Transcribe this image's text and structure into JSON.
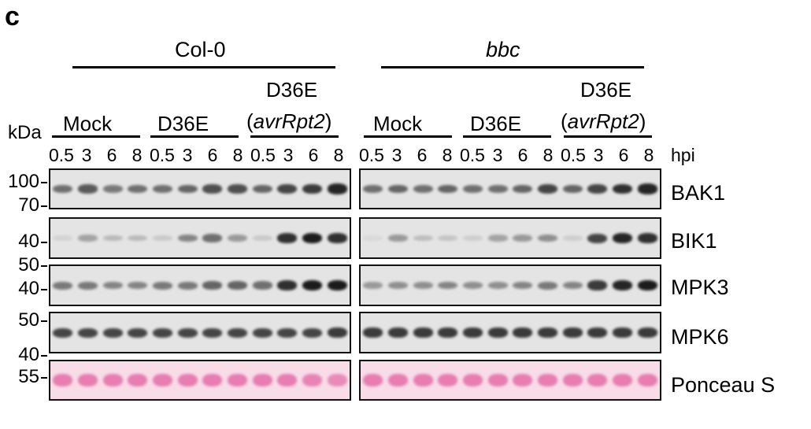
{
  "panel_letter": "c",
  "genotypes": [
    {
      "label": "Col-0",
      "italic": false
    },
    {
      "label": "bbc",
      "italic": true
    }
  ],
  "treatments": {
    "mock": "Mock",
    "d36e": "D36E",
    "d36e_avr_line1": "D36E",
    "d36e_avr_line2_open": "(",
    "d36e_avr_line2_gene": "avrRpt2",
    "d36e_avr_line2_close": ")"
  },
  "kda_label": "kDa",
  "hpi_label": "hpi",
  "timepoints": [
    "0.5",
    "3",
    "6",
    "8"
  ],
  "mw_markers": {
    "bak1": [
      "100",
      "70"
    ],
    "bik1": [
      "40"
    ],
    "mpk3": [
      "50",
      "40"
    ],
    "mpk6": [
      "50",
      "40"
    ],
    "ponceau": [
      "55"
    ]
  },
  "rows": [
    {
      "name": "BAK1",
      "stain": "gray",
      "intensity_col0": [
        0.55,
        0.65,
        0.5,
        0.55,
        0.55,
        0.6,
        0.7,
        0.7,
        0.6,
        0.75,
        0.8,
        0.9
      ],
      "intensity_bbc": [
        0.55,
        0.6,
        0.55,
        0.6,
        0.55,
        0.55,
        0.6,
        0.75,
        0.6,
        0.75,
        0.85,
        0.9
      ]
    },
    {
      "name": "BIK1",
      "stain": "gray",
      "intensity_col0": [
        0.08,
        0.3,
        0.2,
        0.2,
        0.12,
        0.45,
        0.55,
        0.35,
        0.12,
        0.85,
        0.95,
        0.85
      ],
      "intensity_bbc": [
        0.05,
        0.35,
        0.18,
        0.15,
        0.1,
        0.3,
        0.35,
        0.4,
        0.1,
        0.75,
        0.9,
        0.85
      ]
    },
    {
      "name": "MPK3",
      "stain": "gray",
      "intensity_col0": [
        0.5,
        0.5,
        0.45,
        0.45,
        0.5,
        0.5,
        0.6,
        0.6,
        0.55,
        0.85,
        0.95,
        0.95
      ],
      "intensity_bbc": [
        0.35,
        0.4,
        0.4,
        0.45,
        0.4,
        0.4,
        0.45,
        0.5,
        0.45,
        0.8,
        0.9,
        0.95
      ]
    },
    {
      "name": "MPK6",
      "stain": "gray",
      "intensity_col0": [
        0.75,
        0.75,
        0.75,
        0.75,
        0.75,
        0.75,
        0.75,
        0.75,
        0.75,
        0.75,
        0.75,
        0.8
      ],
      "intensity_bbc": [
        0.8,
        0.8,
        0.8,
        0.8,
        0.8,
        0.8,
        0.8,
        0.8,
        0.8,
        0.8,
        0.8,
        0.8
      ]
    },
    {
      "name": "Ponceau S",
      "stain": "pink",
      "intensity_col0": [
        0.7,
        0.7,
        0.7,
        0.7,
        0.7,
        0.7,
        0.7,
        0.7,
        0.7,
        0.7,
        0.65,
        0.6
      ],
      "intensity_bbc": [
        0.7,
        0.7,
        0.7,
        0.7,
        0.7,
        0.7,
        0.7,
        0.7,
        0.7,
        0.7,
        0.7,
        0.7
      ]
    }
  ],
  "colors": {
    "band_gray": "#111111",
    "band_pink": "#e0569a",
    "bg_gray": "#e4e4e4",
    "bg_pink": "#f8dce8"
  }
}
